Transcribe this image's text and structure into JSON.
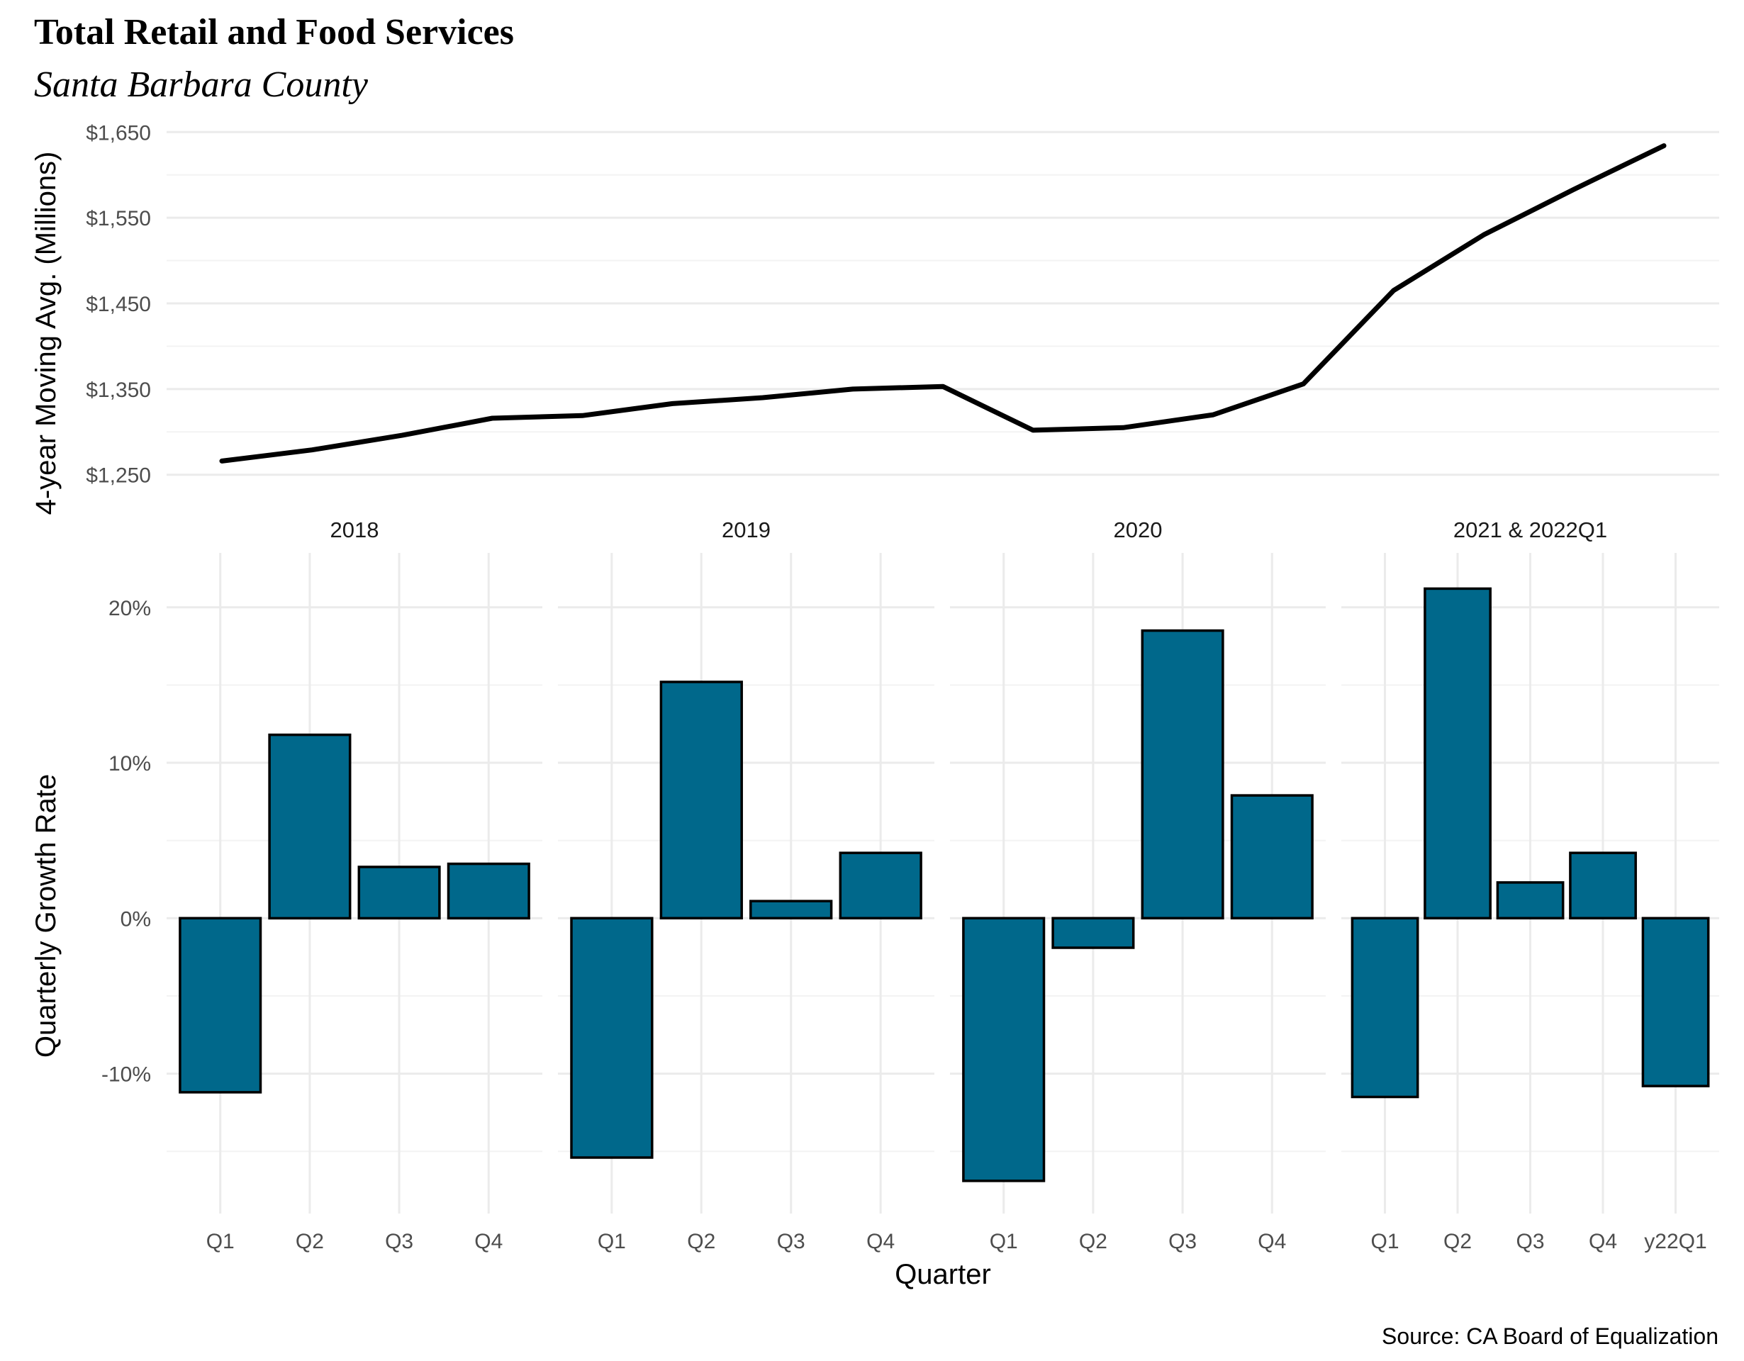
{
  "title": "Total Retail and Food Services",
  "subtitle": "Santa Barbara County",
  "caption": "Source: CA Board of Equalization",
  "colors": {
    "bar_fill": "#00688b",
    "bar_stroke": "#000000",
    "line": "#000000"
  },
  "chart_data": [
    {
      "type": "line",
      "ylabel": "4-year Moving Avg. (Millions)",
      "xlabel": "",
      "ylim": [
        1220,
        1680
      ],
      "yticks": [
        1250,
        1350,
        1450,
        1550,
        1650
      ],
      "ytick_labels": [
        "$1,250",
        "$1,350",
        "$1,450",
        "$1,550",
        "$1,650"
      ],
      "x": [
        "2018 Q1",
        "2018 Q2",
        "2018 Q3",
        "2018 Q4",
        "2019 Q1",
        "2019 Q2",
        "2019 Q3",
        "2019 Q4",
        "2020 Q1",
        "2020 Q2",
        "2020 Q3",
        "2020 Q4",
        "2021 Q1",
        "2021 Q2",
        "2021 Q3",
        "2021 Q4",
        "2022 Q1"
      ],
      "series": [
        {
          "values": [
            1266,
            1279,
            1296,
            1316,
            1319,
            1333,
            1340,
            1350,
            1353,
            1302,
            1305,
            1320,
            1356,
            1465,
            1530,
            1583,
            1634
          ]
        }
      ]
    },
    {
      "type": "bar",
      "xlabel": "Quarter",
      "ylabel": "Quarterly Growth Rate",
      "ylim": [
        -0.19,
        0.235
      ],
      "yticks": [
        -0.1,
        0,
        0.1,
        0.2
      ],
      "ytick_labels": [
        "-10%",
        "0%",
        "10%",
        "20%"
      ],
      "facets": [
        {
          "label": "2018",
          "categories": [
            "Q1",
            "Q2",
            "Q3",
            "Q4"
          ],
          "values": [
            -0.112,
            0.118,
            0.033,
            0.035
          ]
        },
        {
          "label": "2019",
          "categories": [
            "Q1",
            "Q2",
            "Q3",
            "Q4"
          ],
          "values": [
            -0.154,
            0.152,
            0.011,
            0.042
          ]
        },
        {
          "label": "2020",
          "categories": [
            "Q1",
            "Q2",
            "Q3",
            "Q4"
          ],
          "values": [
            -0.169,
            -0.019,
            0.185,
            0.079
          ]
        },
        {
          "label": "2021 & 2022Q1",
          "categories": [
            "Q1",
            "Q2",
            "Q3",
            "Q4",
            "y22Q1"
          ],
          "values": [
            -0.115,
            0.212,
            0.023,
            0.042,
            -0.108
          ]
        }
      ]
    }
  ]
}
